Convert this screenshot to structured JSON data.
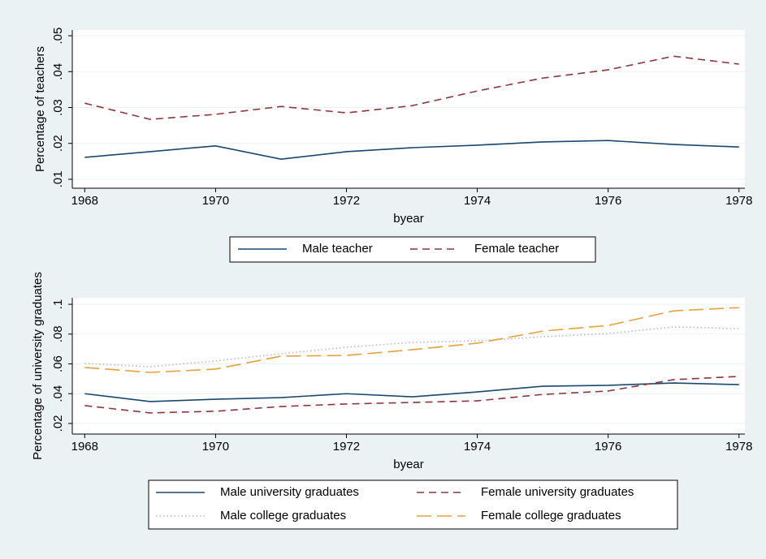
{
  "chart_data": [
    {
      "type": "line",
      "ylabel": "Percentage of teachers",
      "xlabel": "byear",
      "x": [
        1968,
        1969,
        1970,
        1971,
        1972,
        1973,
        1974,
        1975,
        1976,
        1977,
        1978
      ],
      "xlim": [
        1967.81,
        1978.09
      ],
      "xticks": [
        1968,
        1970,
        1972,
        1974,
        1976,
        1978
      ],
      "ylim": [
        0.0075,
        0.0516
      ],
      "yticks": [
        {
          "value": 0.01,
          "label": ".01"
        },
        {
          "value": 0.02,
          "label": ".02"
        },
        {
          "value": 0.03,
          "label": ".03"
        },
        {
          "value": 0.04,
          "label": ".04"
        },
        {
          "value": 0.05,
          "label": ".05"
        }
      ],
      "grid": true,
      "legend": "bottom",
      "series": [
        {
          "name": "Male teacher",
          "color": "#1a476f",
          "linestyle": "solid",
          "values": [
            0.0161,
            0.0177,
            0.0193,
            0.0156,
            0.0177,
            0.0188,
            0.0195,
            0.0204,
            0.0208,
            0.0197,
            0.019
          ]
        },
        {
          "name": "Female teacher",
          "color": "#90353b",
          "linestyle": "dash",
          "values": [
            0.0312,
            0.0267,
            0.0281,
            0.0303,
            0.0285,
            0.0305,
            0.0346,
            0.0382,
            0.0405,
            0.0443,
            0.0421
          ]
        }
      ]
    },
    {
      "type": "line",
      "ylabel": "Percentage of university graduates",
      "xlabel": "byear",
      "x": [
        1968,
        1969,
        1970,
        1971,
        1972,
        1973,
        1974,
        1975,
        1976,
        1977,
        1978
      ],
      "xlim": [
        1967.81,
        1978.09
      ],
      "xticks": [
        1968,
        1970,
        1972,
        1974,
        1976,
        1978
      ],
      "ylim": [
        0.0129,
        0.1044
      ],
      "yticks": [
        {
          "value": 0.02,
          "label": ".02"
        },
        {
          "value": 0.04,
          "label": ".04"
        },
        {
          "value": 0.06,
          "label": ".06"
        },
        {
          "value": 0.08,
          "label": ".08"
        },
        {
          "value": 0.1,
          "label": ".1"
        }
      ],
      "grid": true,
      "legend": "bottom",
      "series": [
        {
          "name": "Male university graduates",
          "color": "#1a476f",
          "linestyle": "solid",
          "values": [
            0.04,
            0.0347,
            0.0363,
            0.0374,
            0.04,
            0.0379,
            0.0412,
            0.045,
            0.0456,
            0.0472,
            0.0461
          ]
        },
        {
          "name": "Female university graduates",
          "color": "#90353b",
          "linestyle": "dash",
          "values": [
            0.032,
            0.0271,
            0.0282,
            0.0314,
            0.0331,
            0.0341,
            0.0352,
            0.0395,
            0.0418,
            0.0494,
            0.0516
          ]
        },
        {
          "name": "Male college graduates",
          "color": "#b8b8b8",
          "linestyle": "dot",
          "values": [
            0.0603,
            0.0581,
            0.062,
            0.0668,
            0.0712,
            0.0744,
            0.0755,
            0.0782,
            0.0804,
            0.0848,
            0.0837
          ]
        },
        {
          "name": "Female college graduates",
          "color": "#e8a13a",
          "linestyle": "longdash",
          "values": [
            0.0576,
            0.0543,
            0.0565,
            0.0652,
            0.0657,
            0.0695,
            0.0739,
            0.082,
            0.0858,
            0.0956,
            0.0978
          ]
        }
      ]
    }
  ]
}
